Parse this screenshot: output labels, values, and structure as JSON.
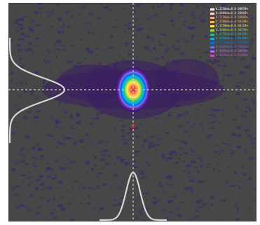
{
  "app": {
    "title": ""
  },
  "viewer": {
    "colors": {
      "background": "#474747",
      "speckle": "#3b2a66",
      "halo": "#3a1e62",
      "core": [
        "#3f1a7a",
        "#6a2a9d",
        "#6e6df0",
        "#0c6de1",
        "#00b4f0",
        "#2ec27e",
        "#a3d94b",
        "#ffe35a",
        "#ffb24d",
        "#ff6b3d",
        "#e0382b"
      ],
      "crosshair": "#cfcfcf",
      "profile": "#d7d7d7",
      "marker": "#d32f2f"
    },
    "icons": {
      "marker": "center-marker-icon"
    },
    "legend": {
      "items": [
        {
          "label": "0.2250mm=0.0 00050%",
          "color": "#ffffff"
        },
        {
          "label": "0.2000mm=0.0 00060%",
          "color": "#ffd7cf"
        },
        {
          "label": "0.1750mm=0.0 00080%",
          "color": "#ff9f7a"
        },
        {
          "label": "0.1500mm=0.0 00100%",
          "color": "#ffb24d"
        },
        {
          "label": "0.1250mm=0.0 00120%",
          "color": "#ffe35a"
        },
        {
          "label": "0.1000mm=0.0 00150%",
          "color": "#a3d94b"
        },
        {
          "label": "0.0750mm=0.0 00200%",
          "color": "#2ec27e"
        },
        {
          "label": "0.0500mm=0.0 00300%",
          "color": "#00b4f0"
        },
        {
          "label": "0.0250mm=0.0 00400%",
          "color": "#0c6de1"
        },
        {
          "label": "0.0125mm=0.0 00600%",
          "color": "#6e6df0"
        },
        {
          "label": "0.0060mm=0.0 00800%",
          "color": "#b06af0"
        },
        {
          "label": "0.0030mm=0.0 01000%",
          "color": "#c04fc0"
        }
      ]
    }
  }
}
